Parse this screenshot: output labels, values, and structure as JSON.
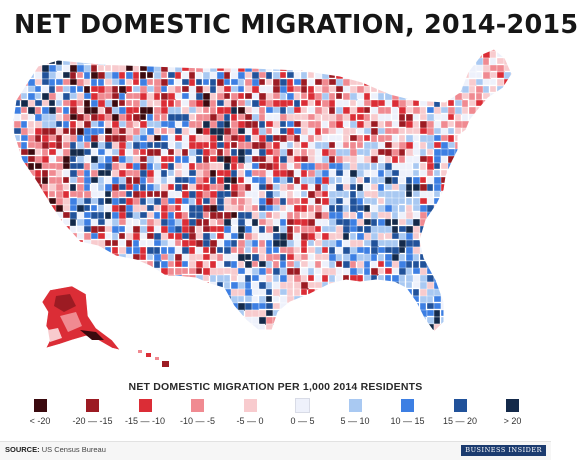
{
  "title": "NET DOMESTIC MIGRATION, 2014-2015",
  "legend": {
    "title": "NET DOMESTIC MIGRATION PER 1,000 2014 RESIDENTS",
    "items": [
      {
        "label": "< -20",
        "color": "#3b0a0f"
      },
      {
        "label": "-20 — -15",
        "color": "#9c1b23"
      },
      {
        "label": "-15 — -10",
        "color": "#db2d36"
      },
      {
        "label": "-10 — -5",
        "color": "#f08a91"
      },
      {
        "label": "-5 — 0",
        "color": "#f8cbce"
      },
      {
        "label": "0 — 5",
        "color": "#eef1fb"
      },
      {
        "label": "5 — 10",
        "color": "#a9c9f2"
      },
      {
        "label": "10 — 15",
        "color": "#3d7fe3"
      },
      {
        "label": "15 — 20",
        "color": "#21529a"
      },
      {
        "label": "> 20",
        "color": "#142a4a"
      }
    ]
  },
  "source": {
    "prefix": "SOURCE:",
    "text": "US Census Bureau"
  },
  "brand": "BUSINESS INSIDER"
}
